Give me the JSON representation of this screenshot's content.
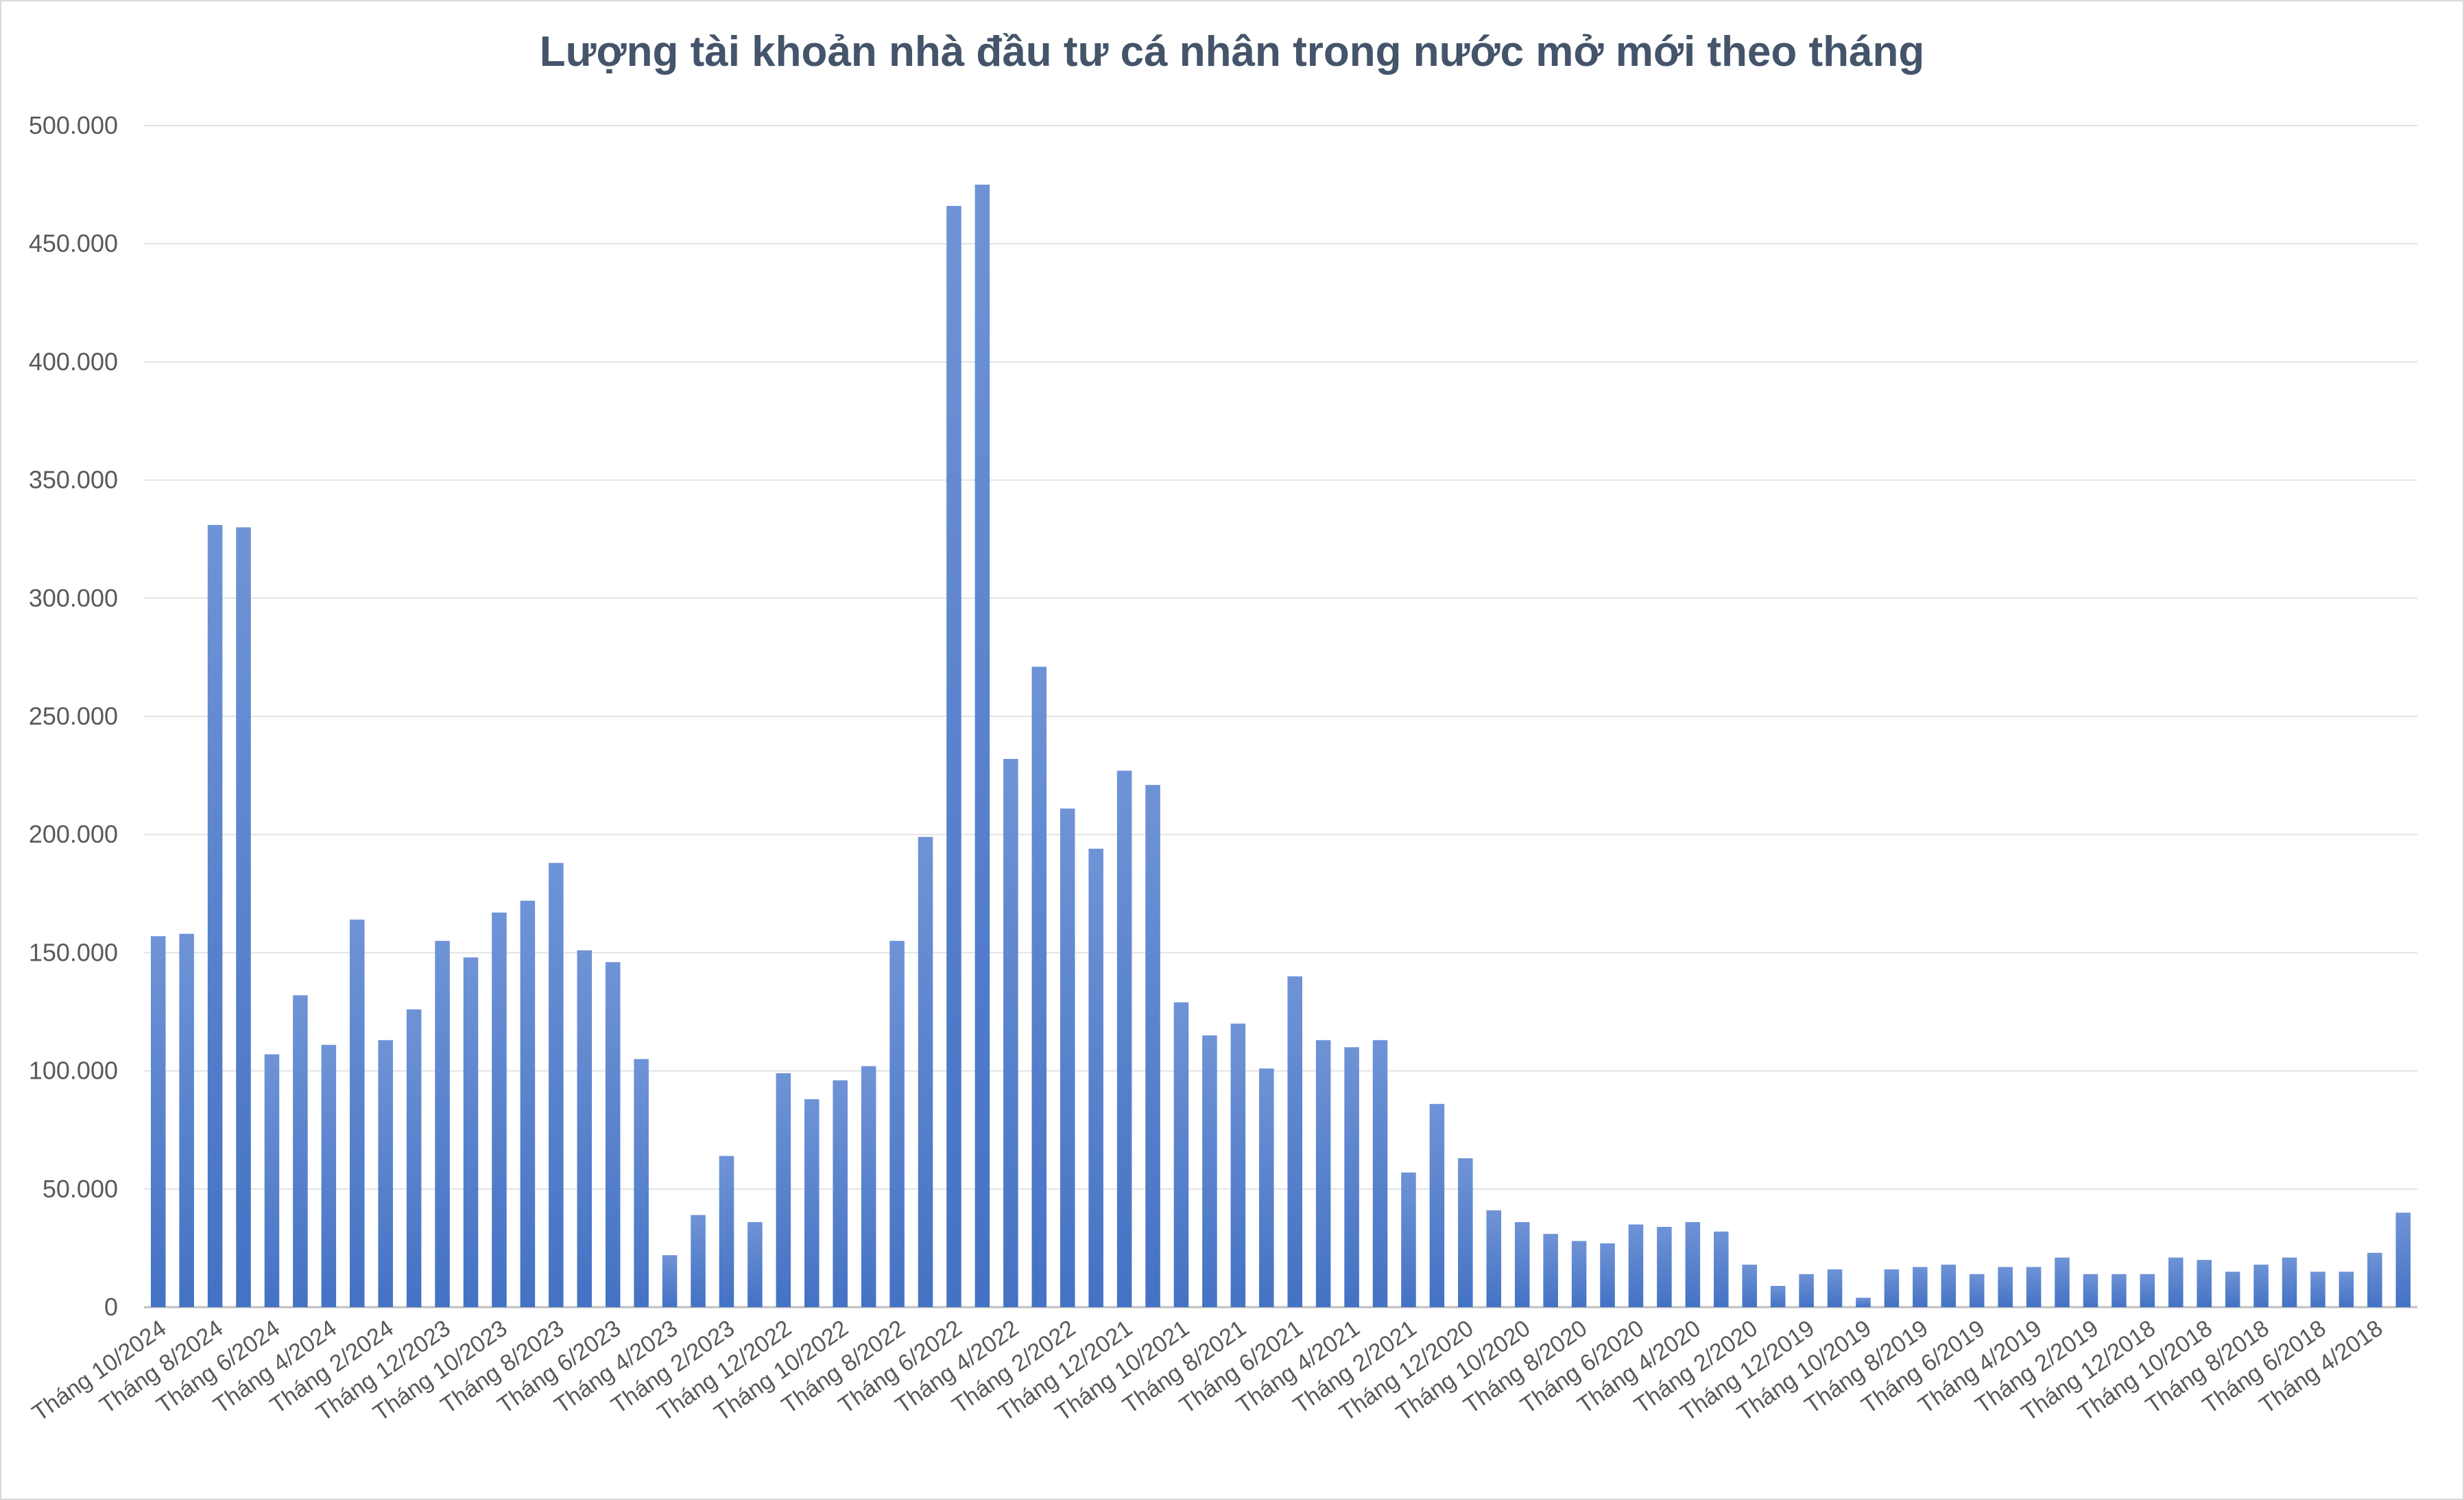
{
  "chart_data": {
    "type": "bar",
    "title": "Lượng tài khoản nhà đầu tư cá nhân trong nước mở mới theo tháng",
    "xlabel": "",
    "ylabel": "",
    "ylim": [
      0,
      500000
    ],
    "grid": true,
    "legend": "none",
    "bar_color": "#4472c4",
    "bar_color_light": "#6f93d6",
    "y_ticks": [
      "0",
      "50.000",
      "100.000",
      "150.000",
      "200.000",
      "250.000",
      "300.000",
      "350.000",
      "400.000",
      "450.000",
      "500.000"
    ],
    "y_tick_values": [
      0,
      50000,
      100000,
      150000,
      200000,
      250000,
      300000,
      350000,
      400000,
      450000,
      500000
    ],
    "categories": [
      "Tháng 10/2024",
      "Tháng 9/2024",
      "Tháng 8/2024",
      "Tháng 7/2024",
      "Tháng 6/2024",
      "Tháng 5/2024",
      "Tháng 4/2024",
      "Tháng 3/2024",
      "Tháng 2/2024",
      "Tháng 1/2024",
      "Tháng 12/2023",
      "Tháng 11/2023",
      "Tháng 10/2023",
      "Tháng 9/2023",
      "Tháng 8/2023",
      "Tháng 7/2023",
      "Tháng 6/2023",
      "Tháng 5/2023",
      "Tháng 4/2023",
      "Tháng 3/2023",
      "Tháng 2/2023",
      "Tháng 1/2023",
      "Tháng 12/2022",
      "Tháng 11/2022",
      "Tháng 10/2022",
      "Tháng 9/2022",
      "Tháng 8/2022",
      "Tháng 7/2022",
      "Tháng 6/2022",
      "Tháng 5/2022",
      "Tháng 4/2022",
      "Tháng 3/2022",
      "Tháng 2/2022",
      "Tháng 1/2022",
      "Tháng 12/2021",
      "Tháng 11/2021",
      "Tháng 10/2021",
      "Tháng 9/2021",
      "Tháng 8/2021",
      "Tháng 7/2021",
      "Tháng 6/2021",
      "Tháng 5/2021",
      "Tháng 4/2021",
      "Tháng 3/2021",
      "Tháng 2/2021",
      "Tháng 1/2021",
      "Tháng 12/2020",
      "Tháng 11/2020",
      "Tháng 10/2020",
      "Tháng 9/2020",
      "Tháng 8/2020",
      "Tháng 7/2020",
      "Tháng 6/2020",
      "Tháng 5/2020",
      "Tháng 4/2020",
      "Tháng 3/2020",
      "Tháng 2/2020",
      "Tháng 1/2020",
      "Tháng 12/2019",
      "Tháng 11/2019",
      "Tháng 10/2019",
      "Tháng 9/2019",
      "Tháng 8/2019",
      "Tháng 7/2019",
      "Tháng 6/2019",
      "Tháng 5/2019",
      "Tháng 4/2019",
      "Tháng 3/2019",
      "Tháng 2/2019",
      "Tháng 1/2019",
      "Tháng 12/2018",
      "Tháng 11/2018",
      "Tháng 10/2018",
      "Tháng 9/2018",
      "Tháng 8/2018",
      "Tháng 7/2018",
      "Tháng 6/2018",
      "Tháng 5/2018",
      "Tháng 4/2018",
      "Tháng 3/2018"
    ],
    "values": [
      157000,
      158000,
      331000,
      330000,
      107000,
      132000,
      111000,
      164000,
      113000,
      126000,
      155000,
      148000,
      167000,
      172000,
      188000,
      151000,
      146000,
      105000,
      22000,
      39000,
      64000,
      36000,
      99000,
      88000,
      96000,
      102000,
      155000,
      199000,
      466000,
      475000,
      232000,
      271000,
      211000,
      194000,
      227000,
      221000,
      129000,
      115000,
      120000,
      101000,
      140000,
      113000,
      110000,
      113000,
      57000,
      86000,
      63000,
      41000,
      36000,
      31000,
      28000,
      27000,
      35000,
      34000,
      36000,
      32000,
      18000,
      9000,
      14000,
      16000,
      4000,
      16000,
      17000,
      18000,
      14000,
      17000,
      17000,
      21000,
      14000,
      14000,
      14000,
      21000,
      20000,
      15000,
      18000,
      21000,
      15000,
      15000,
      23000,
      40000
    ],
    "label_every": 2
  }
}
